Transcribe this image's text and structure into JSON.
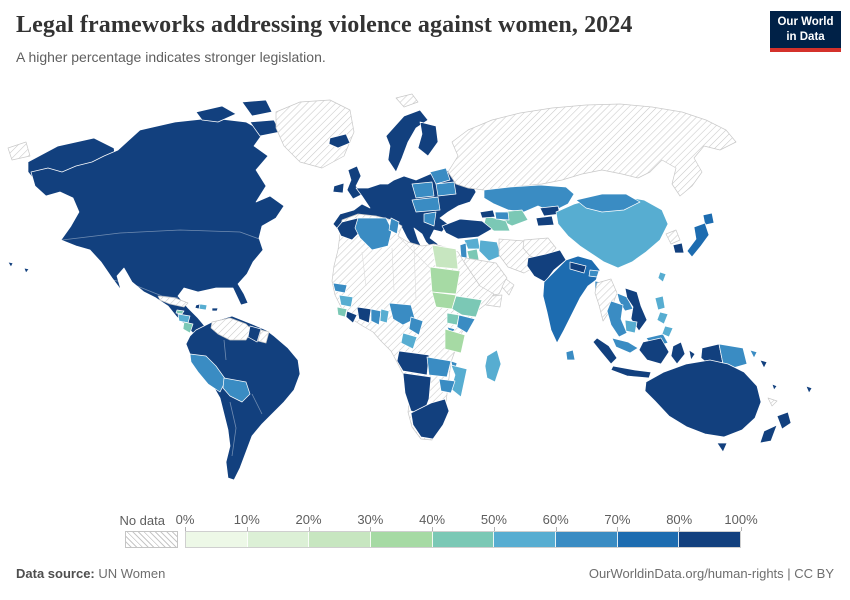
{
  "header": {
    "title": "Legal frameworks addressing violence against women, 2024",
    "subtitle": "A higher percentage indicates stronger legislation."
  },
  "logo": {
    "line1": "Our World",
    "line2": "in Data",
    "bg_color": "#002147",
    "accent_color": "#d4312b"
  },
  "legend": {
    "no_data_label": "No data",
    "tick_labels": [
      "0%",
      "10%",
      "20%",
      "30%",
      "40%",
      "50%",
      "60%",
      "70%",
      "80%",
      "100%"
    ],
    "bins": [
      {
        "label": "0-10%",
        "color": "#edf8e7"
      },
      {
        "label": "10-20%",
        "color": "#dcf0d6"
      },
      {
        "label": "20-30%",
        "color": "#c7e6c0"
      },
      {
        "label": "30-40%",
        "color": "#a6daa4"
      },
      {
        "label": "40-50%",
        "color": "#7bc8b5"
      },
      {
        "label": "50-60%",
        "color": "#57add1"
      },
      {
        "label": "60-70%",
        "color": "#3a8cc3"
      },
      {
        "label": "70-80%",
        "color": "#1d6cb0"
      },
      {
        "label": "80-100%",
        "color": "#12407e"
      }
    ]
  },
  "map": {
    "no_data_pattern_color": "#c9c9c9",
    "border_color": "#ffffff",
    "regions": {
      "alaska": "80-100%",
      "north-america": "80-100%",
      "canada-arctic": "80-100%",
      "greenland": "no-data",
      "honduras": "50-60%",
      "nicaragua": "40-50%",
      "cuba": "no-data",
      "jamaica": "40-50%",
      "haiti": "80-100%",
      "dominican-republic": "50-60%",
      "puerto-rico": "80-100%",
      "south-america": "80-100%",
      "venezuela": "no-data",
      "guyana": "80-100%",
      "suriname": "no-data",
      "peru": "60-70%",
      "bolivia": "60-70%",
      "iceland": "80-100%",
      "ireland": "80-100%",
      "uk": "80-100%",
      "norway-sweden": "80-100%",
      "finland": "80-100%",
      "europe": "80-100%",
      "baltics": "60-70%",
      "poland": "60-70%",
      "belarus": "60-70%",
      "central-europe": "60-70%",
      "serbia": "60-70%",
      "russia": "no-data",
      "chukotka": "no-data",
      "svalbard": "no-data",
      "kazakhstan": "60-70%",
      "uzbekistan": "40-50%",
      "turkmenistan": "40-50%",
      "kyrgyzstan": "80-100%",
      "tajikistan": "80-100%",
      "turkey": "80-100%",
      "georgia": "80-100%",
      "azerbaijan": "60-70%",
      "syria": "50-60%",
      "israel-lebanon": "60-70%",
      "jordan": "40-50%",
      "iraq": "50-60%",
      "saudi-arabia": "no-data",
      "yemen": "no-data",
      "oman": "no-data",
      "iran": "no-data",
      "afghanistan": "no-data",
      "pakistan": "80-100%",
      "india": "70-80%",
      "nepal": "80-100%",
      "bhutan": "60-70%",
      "bangladesh": "60-70%",
      "sri-lanka": "60-70%",
      "china": "50-60%",
      "mongolia": "60-70%",
      "north-korea": "no-data",
      "south-korea": "80-100%",
      "japan": "70-80%",
      "taiwan": "50-60%",
      "myanmar": "no-data",
      "laos": "60-70%",
      "thailand": "60-70%",
      "vietnam": "80-100%",
      "cambodia": "50-60%",
      "malaysia": "60-70%",
      "philippines": "50-60%",
      "indonesia": "80-100%",
      "west-papua": "80-100%",
      "papua-new-guinea": "60-70%",
      "solomon": "80-100%",
      "fiji": "80-100%",
      "vanuatu": "80-100%",
      "new-caledonia": "no-data",
      "australia": "80-100%",
      "new-zealand": "80-100%",
      "hawaii": "80-100%",
      "africa": "no-data",
      "morocco": "80-100%",
      "algeria": "60-70%",
      "tunisia": "60-70%",
      "egypt": "20-30%",
      "sudan": "30-40%",
      "south-sudan": "30-40%",
      "ethiopia": "40-50%",
      "senegal": "60-70%",
      "guinea": "50-60%",
      "sierra-leone": "40-50%",
      "liberia": "80-100%",
      "ivory-coast": "80-100%",
      "ghana": "60-70%",
      "togo-benin": "50-60%",
      "nigeria": "60-70%",
      "cameroon": "60-70%",
      "gabon-congo": "50-60%",
      "uganda": "40-50%",
      "kenya": "60-70%",
      "rwanda-burundi": "60-70%",
      "tanzania": "30-40%",
      "angola": "80-100%",
      "zambia": "60-70%",
      "malawi": "60-70%",
      "mozambique": "50-60%",
      "zimbabwe": "60-70%",
      "namibia": "80-100%",
      "south-africa": "80-100%",
      "madagascar": "50-60%"
    }
  },
  "footer": {
    "source_label": "Data source:",
    "source_value": "UN Women",
    "attribution": "OurWorldinData.org/human-rights | CC BY"
  }
}
